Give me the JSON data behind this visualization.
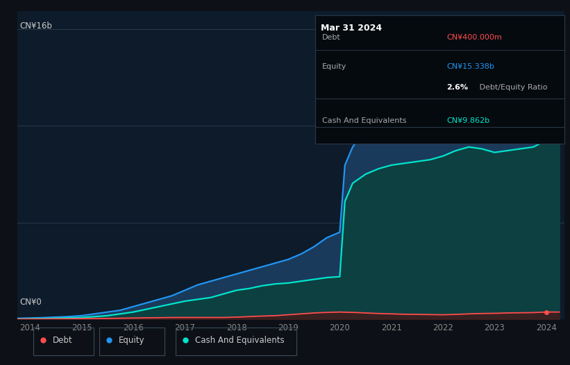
{
  "background_color": "#0d1117",
  "plot_bg_color": "#0d1b2a",
  "legend_bg_color": "#111b27",
  "title": "Mar 31 2024",
  "tooltip": {
    "debt_label": "Debt",
    "debt_value": "CN¥400.000m",
    "debt_color": "#ff4d4d",
    "equity_label": "Equity",
    "equity_value": "CN¥15.338b",
    "equity_color": "#2196f3",
    "ratio_value": "2.6%",
    "ratio_label": "Debt/Equity Ratio",
    "cash_label": "Cash And Equivalents",
    "cash_value": "CN¥9.862b",
    "cash_color": "#00e5cc"
  },
  "ylabel_top": "CN¥16b",
  "ylabel_bottom": "CN¥0",
  "x_ticks": [
    2014,
    2015,
    2016,
    2017,
    2018,
    2019,
    2020,
    2021,
    2022,
    2023,
    2024
  ],
  "legend": [
    {
      "label": "Debt",
      "color": "#ff4d4d"
    },
    {
      "label": "Equity",
      "color": "#2196f3"
    },
    {
      "label": "Cash And Equivalents",
      "color": "#00e5cc"
    }
  ],
  "years": [
    2013.75,
    2014.0,
    2014.25,
    2014.5,
    2014.75,
    2015.0,
    2015.25,
    2015.5,
    2015.75,
    2016.0,
    2016.25,
    2016.5,
    2016.75,
    2017.0,
    2017.25,
    2017.5,
    2017.75,
    2018.0,
    2018.25,
    2018.5,
    2018.75,
    2019.0,
    2019.25,
    2019.5,
    2019.75,
    2020.0,
    2020.1,
    2020.25,
    2020.5,
    2020.75,
    2021.0,
    2021.25,
    2021.5,
    2021.75,
    2022.0,
    2022.25,
    2022.5,
    2022.75,
    2023.0,
    2023.25,
    2023.5,
    2023.75,
    2024.0,
    2024.25
  ],
  "equity": [
    0.05,
    0.07,
    0.09,
    0.12,
    0.15,
    0.2,
    0.3,
    0.4,
    0.5,
    0.7,
    0.9,
    1.1,
    1.3,
    1.6,
    1.9,
    2.1,
    2.3,
    2.5,
    2.7,
    2.9,
    3.1,
    3.3,
    3.6,
    4.0,
    4.5,
    4.8,
    8.5,
    9.5,
    10.5,
    11.0,
    11.5,
    12.0,
    12.5,
    13.0,
    13.5,
    14.0,
    14.8,
    15.2,
    15.5,
    15.6,
    15.7,
    15.5,
    15.338,
    15.338
  ],
  "cash": [
    0.02,
    0.03,
    0.04,
    0.06,
    0.08,
    0.1,
    0.15,
    0.2,
    0.3,
    0.4,
    0.55,
    0.7,
    0.85,
    1.0,
    1.1,
    1.2,
    1.4,
    1.6,
    1.7,
    1.85,
    1.95,
    2.0,
    2.1,
    2.2,
    2.3,
    2.35,
    6.5,
    7.5,
    8.0,
    8.3,
    8.5,
    8.6,
    8.7,
    8.8,
    9.0,
    9.3,
    9.5,
    9.4,
    9.2,
    9.3,
    9.4,
    9.5,
    9.862,
    9.862
  ],
  "debt": [
    0.01,
    0.02,
    0.02,
    0.03,
    0.03,
    0.04,
    0.05,
    0.05,
    0.06,
    0.07,
    0.08,
    0.09,
    0.1,
    0.1,
    0.1,
    0.1,
    0.1,
    0.12,
    0.15,
    0.18,
    0.2,
    0.25,
    0.3,
    0.35,
    0.38,
    0.4,
    0.39,
    0.38,
    0.35,
    0.32,
    0.3,
    0.28,
    0.27,
    0.26,
    0.25,
    0.27,
    0.3,
    0.32,
    0.33,
    0.35,
    0.36,
    0.37,
    0.4,
    0.4
  ],
  "ylim": [
    0,
    17.0
  ],
  "xlim": [
    2013.75,
    2024.35
  ],
  "grid_lines": [
    5.33,
    10.67,
    16.0
  ],
  "equity_fill": "#1a3a5c",
  "cash_fill": "#0d4040",
  "debt_fill": "#4a1515"
}
